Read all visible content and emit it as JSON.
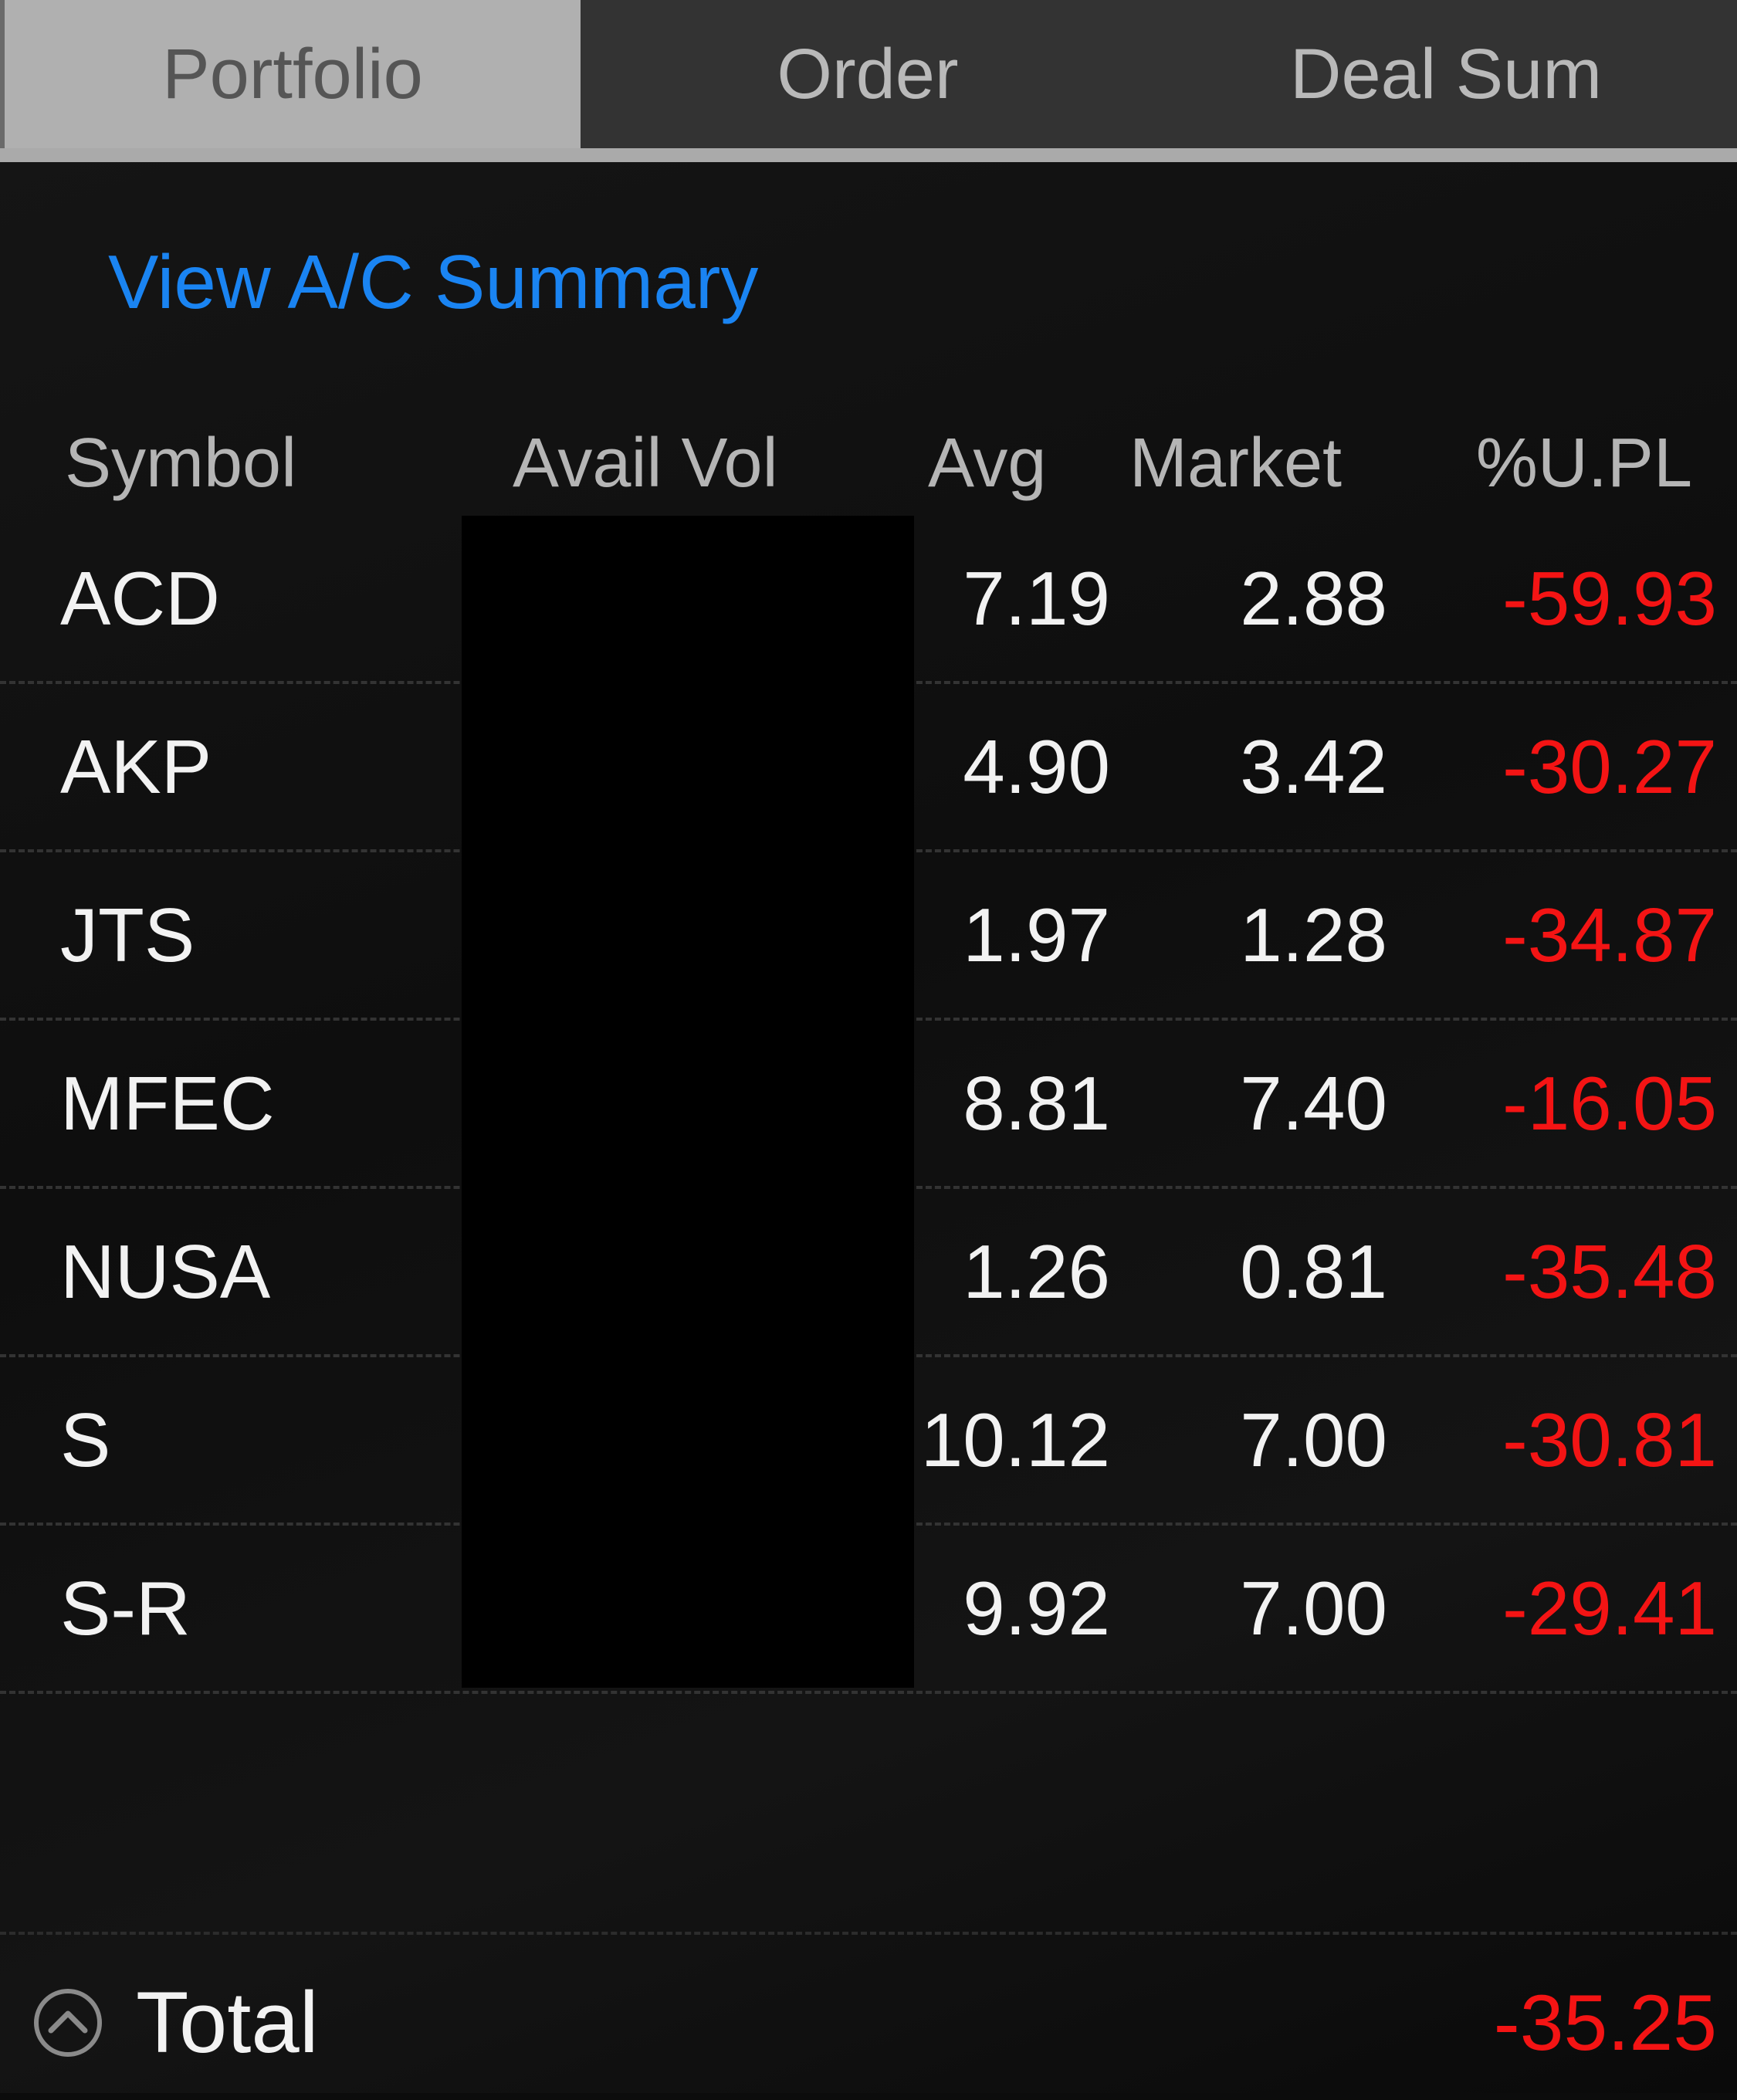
{
  "tabs": [
    {
      "label": "Portfolio",
      "active": true
    },
    {
      "label": "Order",
      "active": false
    },
    {
      "label": "Deal Sum",
      "active": false
    }
  ],
  "summary_link": "View A/C Summary",
  "table": {
    "headers": {
      "symbol": "Symbol",
      "avail_vol": "Avail Vol",
      "avg": "Avg",
      "market": "Market",
      "upl": "%U.PL"
    },
    "rows": [
      {
        "symbol": "ACD",
        "avg": "7.19",
        "market": "2.88",
        "upl": "-59.93"
      },
      {
        "symbol": "AKP",
        "avg": "4.90",
        "market": "3.42",
        "upl": "-30.27"
      },
      {
        "symbol": "JTS",
        "avg": "1.97",
        "market": "1.28",
        "upl": "-34.87"
      },
      {
        "symbol": "MFEC",
        "avg": "8.81",
        "market": "7.40",
        "upl": "-16.05"
      },
      {
        "symbol": "NUSA",
        "avg": "1.26",
        "market": "0.81",
        "upl": "-35.48"
      },
      {
        "symbol": "S",
        "avg": "10.12",
        "market": "7.00",
        "upl": "-30.81"
      },
      {
        "symbol": "S-R",
        "avg": "9.92",
        "market": "7.00",
        "upl": "-29.41"
      }
    ]
  },
  "total": {
    "label": "Total",
    "value": "-35.25",
    "icon": "chevron-up-circle-icon"
  },
  "colors": {
    "link": "#1a84f2",
    "negative": "#f41414",
    "active_tab": "#b0b0b0",
    "inactive_tab": "#333333"
  }
}
